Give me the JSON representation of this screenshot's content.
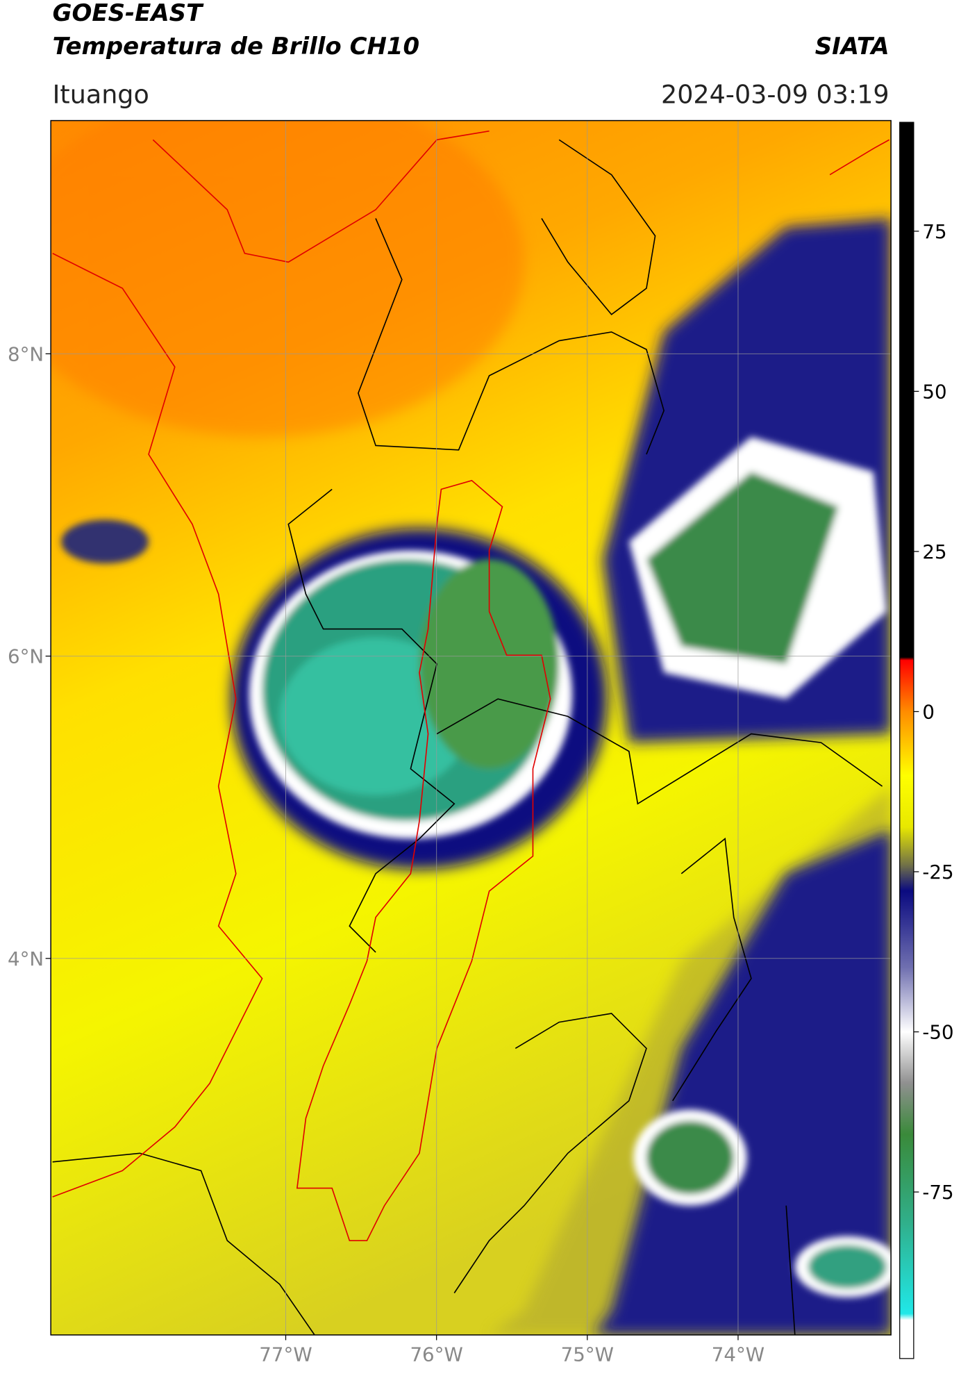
{
  "header": {
    "title_line1": "GOES-EAST",
    "title_line2": "Temperatura de Brillo CH10",
    "source": "SIATA",
    "region": "Ituango",
    "datetime": "2024-03-09 03:19"
  },
  "map": {
    "xlim": [
      -78.558,
      -72.986
    ],
    "ylim": [
      1.509,
      9.543
    ],
    "xticks": [
      {
        "value": -77,
        "label": "77°W"
      },
      {
        "value": -76,
        "label": "76°W"
      },
      {
        "value": -75,
        "label": "75°W"
      },
      {
        "value": -74,
        "label": "74°W"
      }
    ],
    "yticks": [
      {
        "value": 8,
        "label": "8°N"
      },
      {
        "value": 6,
        "label": "6°N"
      },
      {
        "value": 4,
        "label": "4°N"
      }
    ],
    "grid": true
  },
  "colorbar": {
    "lim": [
      -101,
      92
    ],
    "ticks": [
      75,
      50,
      25,
      0,
      -25,
      -50,
      -75
    ],
    "stops": [
      {
        "value": 92,
        "color": "#000000"
      },
      {
        "value": 8.5,
        "color": "#000000"
      },
      {
        "value": 8,
        "color": "#ff0000"
      },
      {
        "value": 0,
        "color": "#ff8c00"
      },
      {
        "value": -10,
        "color": "#ffff00"
      },
      {
        "value": -18,
        "color": "#e8e800"
      },
      {
        "value": -24,
        "color": "#707048"
      },
      {
        "value": -28,
        "color": "#0a0a80"
      },
      {
        "value": -40,
        "color": "#7070b0"
      },
      {
        "value": -50,
        "color": "#ffffff"
      },
      {
        "value": -58,
        "color": "#909090"
      },
      {
        "value": -66,
        "color": "#3a8a3a"
      },
      {
        "value": -80,
        "color": "#30b08c"
      },
      {
        "value": -94,
        "color": "#20e8e8"
      },
      {
        "value": -95,
        "color": "#ffffff"
      },
      {
        "value": -101,
        "color": "#ffffff"
      }
    ]
  }
}
